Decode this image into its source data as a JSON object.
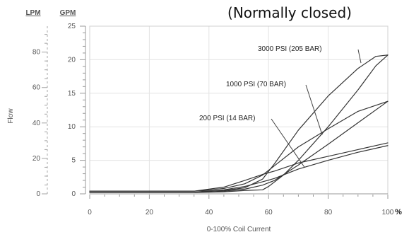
{
  "chart_data": {
    "type": "line",
    "title": "",
    "subtitle": "(Normally closed)",
    "xlabel": "0-100% Coil Current",
    "ylabel": "Flow",
    "xlim": [
      0,
      100
    ],
    "ylim_gpm": [
      0,
      25
    ],
    "ylim_lpm": [
      0,
      94.6
    ],
    "grid": true,
    "legend": "none",
    "axes": {
      "left_unit_label": "LPM",
      "right_unit_label": "GPM",
      "x_unit": "%"
    },
    "x_ticks": [
      {
        "value": 0,
        "label": "0"
      },
      {
        "value": 20,
        "label": "20"
      },
      {
        "value": 40,
        "label": "40"
      },
      {
        "value": 60,
        "label": "60"
      },
      {
        "value": 80,
        "label": "80"
      },
      {
        "value": 100,
        "label": "100"
      }
    ],
    "gpm_ticks": [
      {
        "value": 0,
        "label": "0"
      },
      {
        "value": 5,
        "label": "5"
      },
      {
        "value": 10,
        "label": "10"
      },
      {
        "value": 15,
        "label": "15"
      },
      {
        "value": 20,
        "label": "20"
      },
      {
        "value": 25,
        "label": "25"
      }
    ],
    "lpm_ticks": [
      {
        "value": 0,
        "label": "0"
      },
      {
        "value": 20,
        "label": "20"
      },
      {
        "value": 40,
        "label": "40"
      },
      {
        "value": 60,
        "label": "60"
      },
      {
        "value": 80,
        "label": "80"
      }
    ],
    "series": [
      {
        "name": "3000 PSI (205 BAR)",
        "color": "#333333",
        "upper": [
          [
            0,
            0.4
          ],
          [
            20,
            0.4
          ],
          [
            35,
            0.4
          ],
          [
            45,
            0.5
          ],
          [
            52,
            0.9
          ],
          [
            58,
            2.2
          ],
          [
            62,
            4.5
          ],
          [
            70,
            9.5
          ],
          [
            80,
            14.6
          ],
          [
            90,
            18.7
          ],
          [
            96,
            20.5
          ],
          [
            100,
            20.7
          ]
        ],
        "lower": [
          [
            0,
            0.2
          ],
          [
            20,
            0.2
          ],
          [
            35,
            0.2
          ],
          [
            45,
            0.3
          ],
          [
            52,
            0.5
          ],
          [
            58,
            0.6
          ],
          [
            60,
            1.1
          ],
          [
            65,
            2.8
          ],
          [
            70,
            5.0
          ],
          [
            80,
            10.0
          ],
          [
            90,
            15.5
          ],
          [
            96,
            19.1
          ],
          [
            100,
            20.7
          ]
        ]
      },
      {
        "name": "1000 PSI (70 BAR)",
        "color": "#333333",
        "upper": [
          [
            0,
            0.4
          ],
          [
            20,
            0.4
          ],
          [
            35,
            0.4
          ],
          [
            45,
            0.8
          ],
          [
            52,
            1.5
          ],
          [
            58,
            2.8
          ],
          [
            62,
            4.2
          ],
          [
            70,
            7.0
          ],
          [
            80,
            9.7
          ],
          [
            90,
            12.3
          ],
          [
            100,
            13.8
          ]
        ],
        "lower": [
          [
            0,
            0.2
          ],
          [
            20,
            0.2
          ],
          [
            35,
            0.2
          ],
          [
            45,
            0.4
          ],
          [
            52,
            0.7
          ],
          [
            58,
            1.3
          ],
          [
            62,
            2.0
          ],
          [
            70,
            4.3
          ],
          [
            80,
            7.4
          ],
          [
            90,
            10.6
          ],
          [
            100,
            13.8
          ]
        ]
      },
      {
        "name": "200 PSI (14 BAR)",
        "color": "#333333",
        "upper": [
          [
            0,
            0.4
          ],
          [
            20,
            0.4
          ],
          [
            35,
            0.4
          ],
          [
            45,
            1.0
          ],
          [
            52,
            2.0
          ],
          [
            58,
            2.9
          ],
          [
            62,
            3.4
          ],
          [
            70,
            4.6
          ],
          [
            80,
            5.6
          ],
          [
            90,
            6.6
          ],
          [
            100,
            7.6
          ]
        ],
        "lower": [
          [
            0,
            0.2
          ],
          [
            20,
            0.2
          ],
          [
            35,
            0.2
          ],
          [
            45,
            0.6
          ],
          [
            52,
            1.1
          ],
          [
            58,
            1.8
          ],
          [
            62,
            2.3
          ],
          [
            70,
            3.7
          ],
          [
            80,
            5.0
          ],
          [
            90,
            6.2
          ],
          [
            100,
            7.2
          ]
        ]
      }
    ],
    "annotations": [
      {
        "text": "3000 PSI (205 BAR)",
        "series": "3000 PSI (205 BAR)",
        "target": [
          91,
          19.5
        ]
      },
      {
        "text": "1000 PSI (70 BAR)",
        "series": "1000 PSI (70 BAR)",
        "target": [
          78,
          8.8
        ]
      },
      {
        "text": "200 PSI (14 BAR)",
        "series": "200 PSI (14 BAR)",
        "target": [
          72,
          4.0
        ]
      }
    ]
  }
}
